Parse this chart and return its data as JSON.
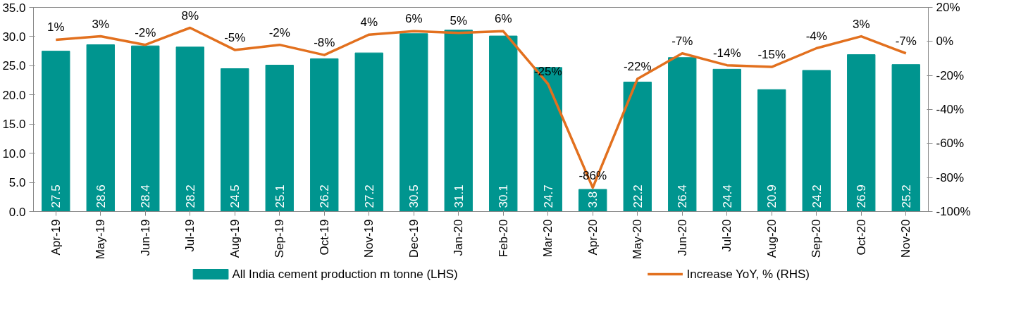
{
  "chart_data": {
    "type": "bar",
    "categories": [
      "Apr-19",
      "May-19",
      "Jun-19",
      "Jul-19",
      "Aug-19",
      "Sep-19",
      "Oct-19",
      "Nov-19",
      "Dec-19",
      "Jan-20",
      "Feb-20",
      "Mar-20",
      "Apr-20",
      "May-20",
      "Jun-20",
      "Jul-20",
      "Aug-20",
      "Sep-20",
      "Oct-20",
      "Nov-20"
    ],
    "series": [
      {
        "name": "All India cement production m tonne (LHS)",
        "color": "#00958f",
        "values": [
          27.5,
          28.6,
          28.4,
          28.2,
          24.5,
          25.1,
          26.2,
          27.2,
          30.5,
          31.1,
          30.1,
          24.7,
          3.8,
          22.2,
          26.4,
          24.4,
          20.9,
          24.2,
          26.9,
          25.2
        ],
        "value_labels": [
          "27.5",
          "28.6",
          "28.4",
          "28.2",
          "24.5",
          "25.1",
          "26.2",
          "27.2",
          "30.5",
          "31.1",
          "30.1",
          "24.7",
          "3.8",
          "22.2",
          "26.4",
          "24.4",
          "20.9",
          "24.2",
          "26.9",
          "25.2"
        ]
      },
      {
        "name": "Increase YoY, % (RHS)",
        "type": "line",
        "axis": "y2",
        "color": "#e2701e",
        "values": [
          1,
          3,
          -2,
          8,
          -5,
          -2,
          -8,
          4,
          6,
          5,
          6,
          -25,
          -86,
          -22,
          -7,
          -14,
          -15,
          -4,
          3,
          -7
        ],
        "value_labels": [
          "1%",
          "3%",
          "-2%",
          "8%",
          "-5%",
          "-2%",
          "-8%",
          "4%",
          "6%",
          "5%",
          "6%",
          "-25%",
          "-86%",
          "-22%",
          "-7%",
          "-14%",
          "-15%",
          "-4%",
          "3%",
          "-7%"
        ]
      }
    ],
    "ylim": [
      0,
      35
    ],
    "yticks": [
      {
        "value": 0,
        "label": "0.0"
      },
      {
        "value": 5,
        "label": "5.0"
      },
      {
        "value": 10,
        "label": "10.0"
      },
      {
        "value": 15,
        "label": "15.0"
      },
      {
        "value": 20,
        "label": "20.0"
      },
      {
        "value": 25,
        "label": "25.0"
      },
      {
        "value": 30,
        "label": "30.0"
      },
      {
        "value": 35,
        "label": "35.0"
      }
    ],
    "y2lim": [
      -100,
      20
    ],
    "y2ticks": [
      {
        "value": -100,
        "label": "-100%"
      },
      {
        "value": -80,
        "label": "-80%"
      },
      {
        "value": -60,
        "label": "-60%"
      },
      {
        "value": -40,
        "label": "-40%"
      },
      {
        "value": -20,
        "label": "-20%"
      },
      {
        "value": 0,
        "label": "0%"
      },
      {
        "value": 20,
        "label": "20%"
      }
    ],
    "legend": "bottom",
    "grid": false,
    "marker": "none",
    "line_style": "solid"
  }
}
